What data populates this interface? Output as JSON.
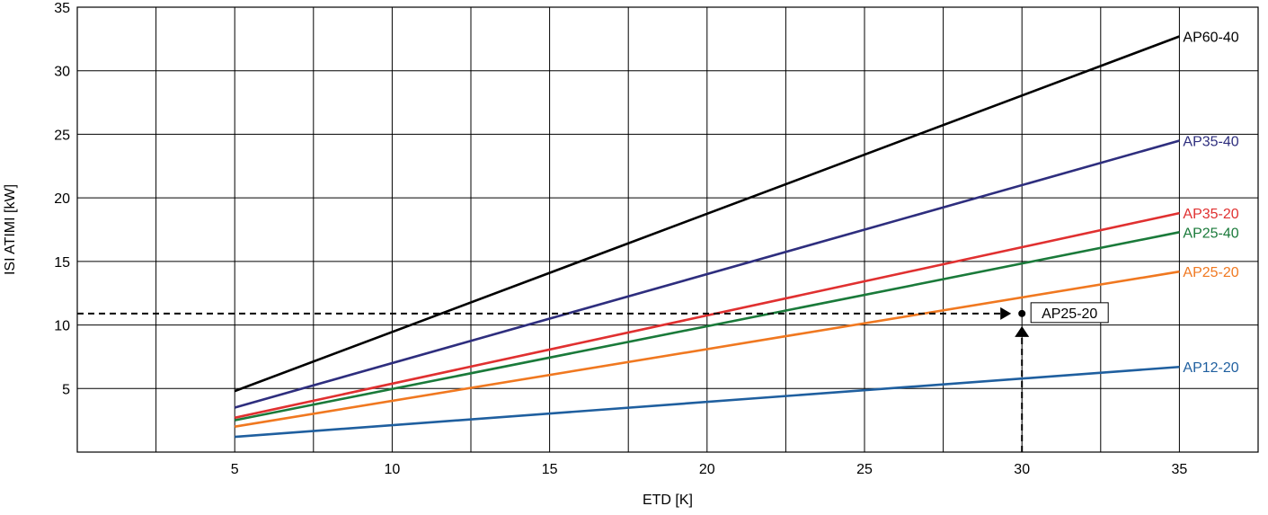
{
  "chart_data": {
    "type": "line",
    "title": "",
    "xlabel": "ETD [K]",
    "ylabel": "ISI ATIMI [kW]",
    "xlim": [
      0,
      37.5
    ],
    "ylim": [
      0,
      35
    ],
    "x_ticks": [
      5,
      10,
      15,
      20,
      25,
      30,
      35
    ],
    "y_ticks": [
      5,
      10,
      15,
      20,
      25,
      30,
      35
    ],
    "x_grid_step": 2.5,
    "y_grid_step": 5,
    "grid": true,
    "legend": "inline labels at line ends (right)",
    "series": [
      {
        "name": "AP60-40",
        "color": "#000000",
        "x": [
          5,
          35
        ],
        "y": [
          4.8,
          32.7
        ]
      },
      {
        "name": "AP35-40",
        "color": "#2e2e7e",
        "x": [
          5,
          35
        ],
        "y": [
          3.5,
          24.5
        ]
      },
      {
        "name": "AP35-20",
        "color": "#e03030",
        "x": [
          5,
          35
        ],
        "y": [
          2.7,
          18.8
        ]
      },
      {
        "name": "AP25-40",
        "color": "#1a7a3a",
        "x": [
          5,
          35
        ],
        "y": [
          2.5,
          17.3
        ]
      },
      {
        "name": "AP25-20",
        "color": "#f07820",
        "x": [
          5,
          35
        ],
        "y": [
          2.0,
          14.2
        ]
      },
      {
        "name": "AP12-20",
        "color": "#1f5f9f",
        "x": [
          5,
          35
        ],
        "y": [
          1.2,
          6.7
        ]
      }
    ],
    "annotation": {
      "label": "AP25-20",
      "point": {
        "x": 30,
        "y": 10.9
      }
    }
  }
}
